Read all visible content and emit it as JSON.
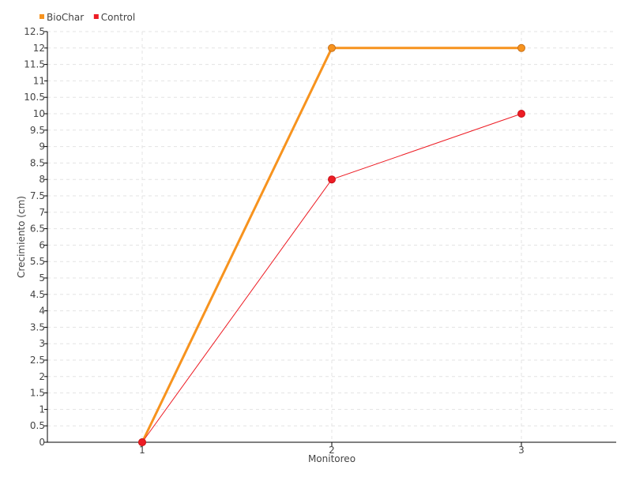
{
  "chart_data": {
    "type": "line",
    "title": "",
    "xlabel": "Monitoreo",
    "ylabel": "Crecimiento (cm)",
    "categories": [
      "1",
      "2",
      "3"
    ],
    "ylim": [
      0,
      12.5
    ],
    "yticks": [
      "0",
      "0.5",
      "1",
      "1.5",
      "2",
      "2.5",
      "3",
      "3.5",
      "4",
      "4.5",
      "5",
      "5.5",
      "6",
      "6.5",
      "7",
      "7.5",
      "8",
      "8.5",
      "9",
      "9.5",
      "10",
      "10.5",
      "11",
      "11.5",
      "12",
      "12.5"
    ],
    "grid": true,
    "legend_position": "top-left",
    "series": [
      {
        "name": "BioChar",
        "values": [
          0,
          12,
          12
        ],
        "color": "#f7931e"
      },
      {
        "name": "Control",
        "values": [
          0,
          8,
          10
        ],
        "color": "#ed1c24"
      }
    ]
  }
}
